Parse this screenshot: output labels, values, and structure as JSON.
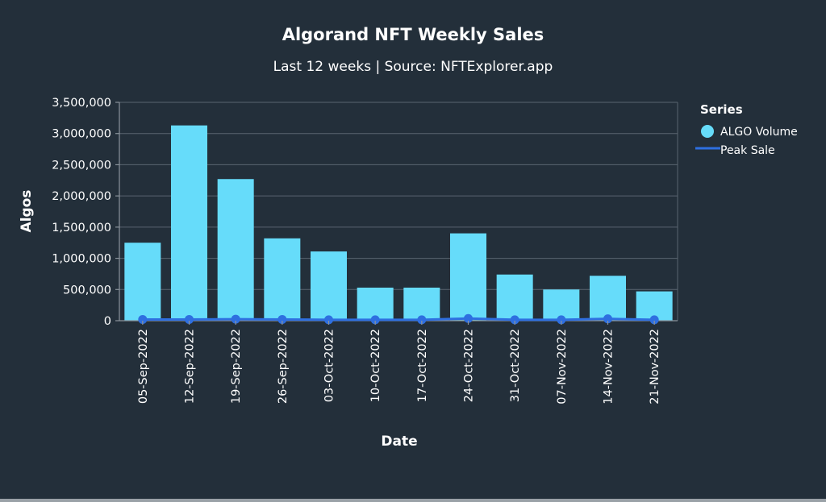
{
  "chart_data": {
    "type": "bar",
    "title": "Algorand NFT Weekly Sales",
    "subtitle": "Last 12 weeks | Source: NFTExplorer.app",
    "xlabel": "Date",
    "ylabel": "Algos",
    "ylim": [
      0,
      3500000
    ],
    "yticks": [
      0,
      500000,
      1000000,
      1500000,
      2000000,
      2500000,
      3000000,
      3500000
    ],
    "ytick_labels": [
      "0",
      "500,000",
      "1,000,000",
      "1,500,000",
      "2,000,000",
      "2,500,000",
      "3,000,000",
      "3,500,000"
    ],
    "grid": true,
    "legend_position": "right",
    "legend_title": "Series",
    "categories": [
      "05-Sep-2022",
      "12-Sep-2022",
      "19-Sep-2022",
      "26-Sep-2022",
      "03-Oct-2022",
      "10-Oct-2022",
      "17-Oct-2022",
      "24-Oct-2022",
      "31-Oct-2022",
      "07-Nov-2022",
      "14-Nov-2022",
      "21-Nov-2022"
    ],
    "series": [
      {
        "name": "ALGO Volume",
        "type": "bar",
        "color": "#66dcfa",
        "values": [
          1250000,
          3130000,
          2270000,
          1320000,
          1110000,
          530000,
          530000,
          1400000,
          740000,
          500000,
          720000,
          470000
        ]
      },
      {
        "name": "Peak Sale",
        "type": "line",
        "color": "#2e6fe0",
        "values": [
          20000,
          20000,
          25000,
          20000,
          15000,
          15000,
          15000,
          35000,
          15000,
          15000,
          30000,
          15000
        ]
      }
    ]
  },
  "colors": {
    "background": "#232f3a",
    "bar": "#66dcfa",
    "line": "#2e6fe0",
    "text": "#ffffff",
    "grid": "#5a6570"
  }
}
